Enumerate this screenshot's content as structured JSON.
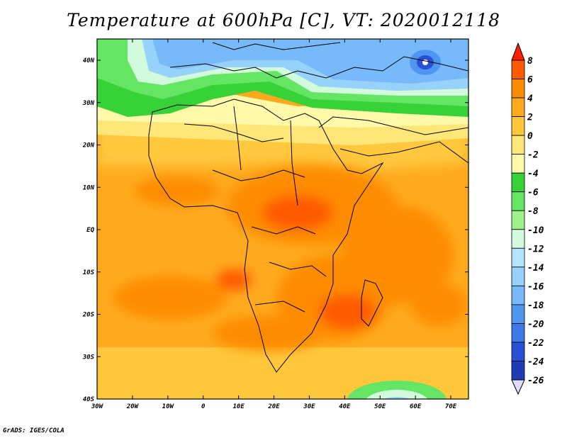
{
  "title": "Temperature at 600hPa [C], VT: 2020012118",
  "credit": "GrADS: IGES/COLA",
  "map": {
    "lon_labels": [
      "30W",
      "20W",
      "10W",
      "0",
      "10E",
      "20E",
      "30E",
      "40E",
      "50E",
      "60E",
      "70E"
    ],
    "lat_labels": [
      "40N",
      "30N",
      "20N",
      "10N",
      "EQ",
      "10S",
      "20S",
      "30S",
      "40S"
    ]
  },
  "colorbar": {
    "labels": [
      "8",
      "6",
      "4",
      "2",
      "0",
      "-2",
      "-4",
      "-6",
      "-8",
      "-10",
      "-12",
      "-14",
      "-16",
      "-18",
      "-20",
      "-22",
      "-24",
      "-26"
    ],
    "colors": [
      "#ff1e00",
      "#ff5a00",
      "#ff8c00",
      "#ffaa1e",
      "#ffc83c",
      "#ffe678",
      "#fffaaa",
      "#37d237",
      "#64e664",
      "#a0f08c",
      "#d2fadc",
      "#b4e6ff",
      "#96d2fa",
      "#78b9fa",
      "#5096f0",
      "#3c78e6",
      "#2850d2",
      "#1e3cb4",
      "#0a1e8c",
      "#e0ddfa"
    ]
  }
}
